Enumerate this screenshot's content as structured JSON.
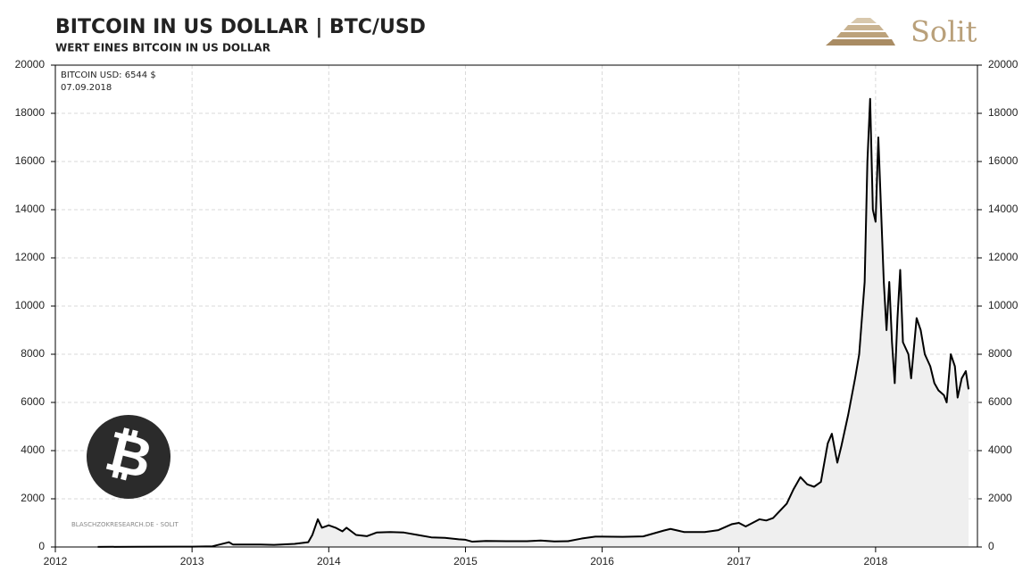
{
  "chart_data": {
    "type": "line",
    "title": "BITCOIN IN US DOLLAR  |  BTC/USD",
    "subtitle": "WERT EINES BITCOIN IN US DOLLAR",
    "logo": "Solit",
    "annotations": {
      "label": "BITCOIN USD: 6544 $",
      "date": "07.09.2018",
      "source": "BLASCHZOKRESEARCH.DE  -  SOLIT"
    },
    "x": [
      2012.31,
      2012.6,
      2012.9,
      2013.0,
      2013.15,
      2013.27,
      2013.3,
      2013.5,
      2013.6,
      2013.75,
      2013.85,
      2013.88,
      2013.92,
      2013.95,
      2014.0,
      2014.05,
      2014.1,
      2014.13,
      2014.2,
      2014.28,
      2014.35,
      2014.45,
      2014.55,
      2014.65,
      2014.75,
      2014.85,
      2014.95,
      2015.0,
      2015.05,
      2015.15,
      2015.3,
      2015.45,
      2015.55,
      2015.65,
      2015.75,
      2015.85,
      2015.95,
      2016.0,
      2016.15,
      2016.3,
      2016.45,
      2016.5,
      2016.6,
      2016.75,
      2016.85,
      2016.95,
      2017.0,
      2017.05,
      2017.15,
      2017.2,
      2017.25,
      2017.35,
      2017.4,
      2017.45,
      2017.5,
      2017.55,
      2017.6,
      2017.65,
      2017.68,
      2017.72,
      2017.75,
      2017.8,
      2017.85,
      2017.88,
      2017.92,
      2017.94,
      2017.96,
      2017.98,
      2018.0,
      2018.02,
      2018.04,
      2018.06,
      2018.08,
      2018.1,
      2018.12,
      2018.14,
      2018.16,
      2018.18,
      2018.2,
      2018.24,
      2018.26,
      2018.3,
      2018.33,
      2018.36,
      2018.4,
      2018.43,
      2018.46,
      2018.5,
      2018.52,
      2018.55,
      2018.58,
      2018.6,
      2018.63,
      2018.66,
      2018.68
    ],
    "series": [
      {
        "color": "#000000",
        "fill": "#efefef",
        "values": [
          5,
          10,
          13,
          13,
          30,
          200,
          100,
          100,
          90,
          130,
          200,
          500,
          1150,
          800,
          900,
          800,
          650,
          800,
          500,
          450,
          600,
          620,
          600,
          500,
          400,
          380,
          320,
          300,
          220,
          250,
          240,
          240,
          270,
          230,
          240,
          350,
          430,
          430,
          420,
          440,
          680,
          750,
          620,
          620,
          700,
          950,
          1000,
          850,
          1150,
          1100,
          1200,
          1800,
          2400,
          2900,
          2600,
          2500,
          2700,
          4300,
          4700,
          3500,
          4200,
          5500,
          7000,
          8000,
          11000,
          16000,
          18600,
          14000,
          13500,
          17000,
          14000,
          11000,
          9000,
          11000,
          8500,
          6800,
          9500,
          11500,
          8500,
          8000,
          7000,
          9500,
          9000,
          8000,
          7500,
          6800,
          6500,
          6300,
          6000,
          8000,
          7500,
          6200,
          7000,
          7300,
          6544
        ]
      }
    ],
    "xlim": [
      2012,
      2018.745
    ],
    "xticks": [
      2012,
      2013,
      2014,
      2015,
      2016,
      2017,
      2018
    ],
    "ylim": [
      0,
      20000
    ],
    "yticks": [
      0,
      2000,
      4000,
      6000,
      8000,
      10000,
      12000,
      14000,
      16000,
      18000,
      20000
    ],
    "y2lim": [
      0,
      20000
    ],
    "y2ticks": [
      0,
      2000,
      4000,
      6000,
      8000,
      10000,
      12000,
      14000,
      16000,
      18000,
      20000
    ],
    "grid": true
  }
}
